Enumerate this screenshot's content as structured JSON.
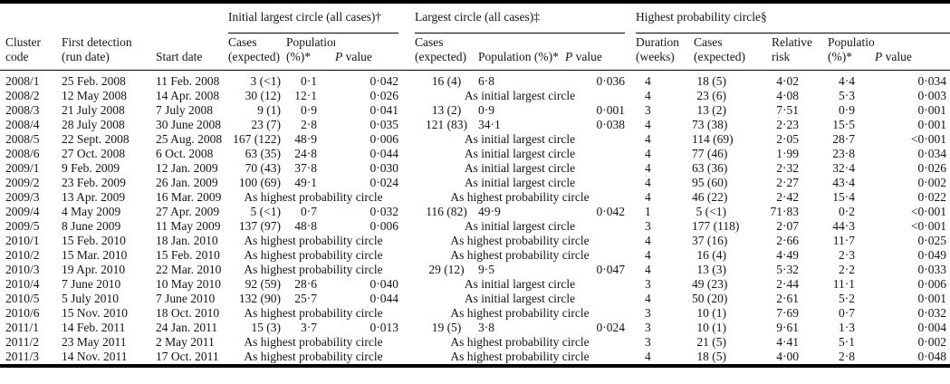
{
  "labels": {
    "p": "P",
    "value": " value"
  },
  "table": {
    "groups": {
      "initial": "Initial largest circle (all cases)†",
      "largest": "Largest circle (all cases)‡",
      "highest": "Highest probability circle§"
    },
    "columns": {
      "cluster_code": "Cluster\ncode",
      "first_detection": "First detection\n(run date)",
      "start_date": "Start date",
      "cases_expected": "Cases\n(expected)",
      "population_pct": "Population\n(%)*",
      "population_pct_inline": "Population (%)*",
      "duration_weeks": "Duration\n(weeks)",
      "relative_risk": "Relative\nrisk"
    },
    "span_texts": {
      "as_initial": "As initial largest circle",
      "as_highest": "As highest probability circle"
    },
    "rows": [
      {
        "code": "2008/1",
        "first": "25 Feb. 2008",
        "start": "11 Feb. 2008",
        "initial": {
          "cases": "3 (<1)",
          "pop": "0·1",
          "p": "0·042"
        },
        "largest": {
          "cases": "16 (4)",
          "pop": "6·8",
          "p": "0·036"
        },
        "highest": {
          "duration": "4",
          "cases": "18 (5)",
          "rr": "4·02",
          "pop": "4·4",
          "p": "0·034"
        }
      },
      {
        "code": "2008/2",
        "first": "12 May 2008",
        "start": "14 Apr. 2008",
        "initial": {
          "cases": "30 (12)",
          "pop": "12·1",
          "p": "0·026"
        },
        "largest": "As initial largest circle",
        "highest": {
          "duration": "4",
          "cases": "23 (6)",
          "rr": "4·08",
          "pop": "5·3",
          "p": "0·003"
        }
      },
      {
        "code": "2008/3",
        "first": "21 July 2008",
        "start": "7 July 2008",
        "initial": {
          "cases": "9 (1)",
          "pop": "0·9",
          "p": "0·041"
        },
        "largest": {
          "cases": "13 (2)",
          "pop": "0·9",
          "p": "0·001"
        },
        "highest": {
          "duration": "3",
          "cases": "13 (2)",
          "rr": "7·51",
          "pop": "0·9",
          "p": "0·001"
        }
      },
      {
        "code": "2008/4",
        "first": "28 July 2008",
        "start": "30 June 2008",
        "initial": {
          "cases": "23 (7)",
          "pop": "2·8",
          "p": "0·035"
        },
        "largest": {
          "cases": "121 (83)",
          "pop": "34·1",
          "p": "0·038"
        },
        "highest": {
          "duration": "4",
          "cases": "73 (38)",
          "rr": "2·23",
          "pop": "15·5",
          "p": "0·001"
        }
      },
      {
        "code": "2008/5",
        "first": "22 Sept. 2008",
        "start": "25 Aug. 2008",
        "initial": {
          "cases": "167 (122)",
          "pop": "48·9",
          "p": "0·006"
        },
        "largest": "As initial largest circle",
        "highest": {
          "duration": "4",
          "cases": "114 (69)",
          "rr": "2·05",
          "pop": "28·7",
          "p": "<0·001"
        }
      },
      {
        "code": "2008/6",
        "first": "27 Oct. 2008",
        "start": "6 Oct. 2008",
        "initial": {
          "cases": "63 (35)",
          "pop": "24·8",
          "p": "0·044"
        },
        "largest": "As initial largest circle",
        "highest": {
          "duration": "4",
          "cases": "77 (46)",
          "rr": "1·99",
          "pop": "23·8",
          "p": "0·034"
        }
      },
      {
        "code": "2009/1",
        "first": "9 Feb. 2009",
        "start": "12 Jan. 2009",
        "initial": {
          "cases": "70 (43)",
          "pop": "37·8",
          "p": "0·030"
        },
        "largest": "As initial largest circle",
        "highest": {
          "duration": "4",
          "cases": "63 (36)",
          "rr": "2·32",
          "pop": "32·4",
          "p": "0·026"
        }
      },
      {
        "code": "2009/2",
        "first": "23 Feb. 2009",
        "start": "26 Jan. 2009",
        "initial": {
          "cases": "100 (69)",
          "pop": "49·1",
          "p": "0·024"
        },
        "largest": "As initial largest circle",
        "highest": {
          "duration": "4",
          "cases": "95 (60)",
          "rr": "2·27",
          "pop": "43·4",
          "p": "0·002"
        }
      },
      {
        "code": "2009/3",
        "first": "13 Apr. 2009",
        "start": "16 Mar. 2009",
        "initial": "As highest probability circle",
        "largest": "As highest probability circle",
        "highest": {
          "duration": "4",
          "cases": "46 (22)",
          "rr": "2·42",
          "pop": "15·4",
          "p": "0·022"
        }
      },
      {
        "code": "2009/4",
        "first": "4 May 2009",
        "start": "27 Apr. 2009",
        "initial": {
          "cases": "5 (<1)",
          "pop": "0·7",
          "p": "0·032"
        },
        "largest": {
          "cases": "116 (82)",
          "pop": "49·9",
          "p": "0·042"
        },
        "highest": {
          "duration": "1",
          "cases": "5 (<1)",
          "rr": "71·83",
          "pop": "0·2",
          "p": "<0·001"
        }
      },
      {
        "code": "2009/5",
        "first": "8 June 2009",
        "start": "11 May 2009",
        "initial": {
          "cases": "137 (97)",
          "pop": "48·8",
          "p": "0·006"
        },
        "largest": "As initial largest circle",
        "highest": {
          "duration": "3",
          "cases": "177 (118)",
          "rr": "2·07",
          "pop": "44·3",
          "p": "<0·001"
        }
      },
      {
        "code": "2010/1",
        "first": "15 Feb. 2010",
        "start": "18 Jan. 2010",
        "initial": "As highest probability circle",
        "largest": "As highest probability circle",
        "highest": {
          "duration": "4",
          "cases": "37 (16)",
          "rr": "2·66",
          "pop": "11·7",
          "p": "0·025"
        }
      },
      {
        "code": "2010/2",
        "first": "15 Mar. 2010",
        "start": "15 Feb. 2010",
        "initial": "As highest probability circle",
        "largest": "As highest probability circle",
        "highest": {
          "duration": "4",
          "cases": "16 (4)",
          "rr": "4·49",
          "pop": "2·3",
          "p": "0·049"
        }
      },
      {
        "code": "2010/3",
        "first": "19 Apr. 2010",
        "start": "22 Mar. 2010",
        "initial": "As highest probability circle",
        "largest": {
          "cases": "29 (12)",
          "pop": "9·5",
          "p": "0·047"
        },
        "highest": {
          "duration": "4",
          "cases": "13 (3)",
          "rr": "5·32",
          "pop": "2·2",
          "p": "0·033"
        }
      },
      {
        "code": "2010/4",
        "first": "7 June 2010",
        "start": "10 May 2010",
        "initial": {
          "cases": "92 (59)",
          "pop": "28·6",
          "p": "0·040"
        },
        "largest": "As initial largest circle",
        "highest": {
          "duration": "3",
          "cases": "49 (23)",
          "rr": "2·44",
          "pop": "11·1",
          "p": "0·006"
        }
      },
      {
        "code": "2010/5",
        "first": "5 July 2010",
        "start": "7 June 2010",
        "initial": {
          "cases": "132 (90)",
          "pop": "25·7",
          "p": "0·044"
        },
        "largest": "As initial largest circle",
        "highest": {
          "duration": "4",
          "cases": "50 (20)",
          "rr": "2·61",
          "pop": "5·2",
          "p": "0·001"
        }
      },
      {
        "code": "2010/6",
        "first": "15 Nov. 2010",
        "start": "18 Oct. 2010",
        "initial": "As highest probability circle",
        "largest": "As highest probability circle",
        "highest": {
          "duration": "3",
          "cases": "10 (1)",
          "rr": "7·69",
          "pop": "0·7",
          "p": "0·032"
        }
      },
      {
        "code": "2011/1",
        "first": "14 Feb. 2011",
        "start": "24 Jan. 2011",
        "initial": {
          "cases": "15 (3)",
          "pop": "3·7",
          "p": "0·013"
        },
        "largest": {
          "cases": "19 (5)",
          "pop": "3·8",
          "p": "0·024"
        },
        "highest": {
          "duration": "3",
          "cases": "10 (1)",
          "rr": "9·61",
          "pop": "1·3",
          "p": "0·004"
        }
      },
      {
        "code": "2011/2",
        "first": "23 May 2011",
        "start": "2 May 2011",
        "initial": "As highest probability circle",
        "largest": "As highest probability circle",
        "highest": {
          "duration": "3",
          "cases": "21 (5)",
          "rr": "4·41",
          "pop": "5·1",
          "p": "0·002"
        }
      },
      {
        "code": "2011/3",
        "first": "14 Nov. 2011",
        "start": "17 Oct. 2011",
        "initial": "As highest probability circle",
        "largest": "As highest probability circle",
        "highest": {
          "duration": "4",
          "cases": "18 (5)",
          "rr": "4·00",
          "pop": "2·8",
          "p": "0·048"
        }
      }
    ]
  }
}
